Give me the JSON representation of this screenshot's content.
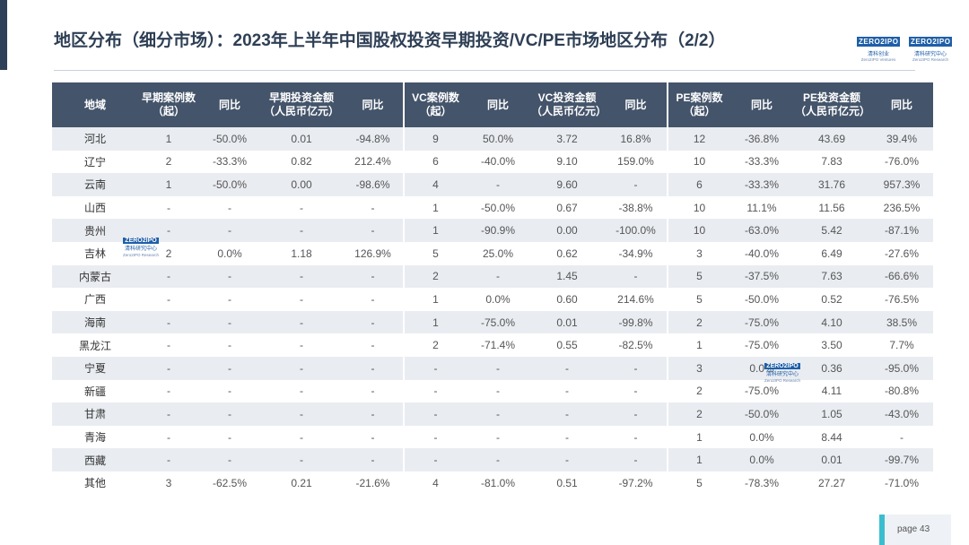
{
  "title": "地区分布（细分市场）：2023年上半年中国股权投资早期投资/VC/PE市场地区分布（2/2）",
  "logos": [
    {
      "word": "ZERO2IPO",
      "sub": "清科创业",
      "sub2": "Zero2IPO Ventures"
    },
    {
      "word": "ZERO2IPO",
      "sub": "清科研究中心",
      "sub2": "Zero2IPO Research"
    }
  ],
  "watermark": {
    "word": "ZERO2IPO",
    "sub": "清科研究中心",
    "sub2": "Zero2IPO Research"
  },
  "headers": [
    "地域",
    "早期案例数（起）",
    "同比",
    "早期投资金额（人民币亿元）",
    "同比",
    "VC案例数（起）",
    "同比",
    "VC投资金额（人民币亿元）",
    "同比",
    "PE案例数（起）",
    "同比",
    "PE投资金额（人民币亿元）",
    "同比"
  ],
  "rows": [
    [
      "河北",
      "1",
      "-50.0%",
      "0.01",
      "-94.8%",
      "9",
      "50.0%",
      "3.72",
      "16.8%",
      "12",
      "-36.8%",
      "43.69",
      "39.4%"
    ],
    [
      "辽宁",
      "2",
      "-33.3%",
      "0.82",
      "212.4%",
      "6",
      "-40.0%",
      "9.10",
      "159.0%",
      "10",
      "-33.3%",
      "7.83",
      "-76.0%"
    ],
    [
      "云南",
      "1",
      "-50.0%",
      "0.00",
      "-98.6%",
      "4",
      "-",
      "9.60",
      "-",
      "6",
      "-33.3%",
      "31.76",
      "957.3%"
    ],
    [
      "山西",
      "-",
      "-",
      "-",
      "-",
      "1",
      "-50.0%",
      "0.67",
      "-38.8%",
      "10",
      "11.1%",
      "11.56",
      "236.5%"
    ],
    [
      "贵州",
      "-",
      "-",
      "-",
      "-",
      "1",
      "-90.9%",
      "0.00",
      "-100.0%",
      "10",
      "-63.0%",
      "5.42",
      "-87.1%"
    ],
    [
      "吉林",
      "2",
      "0.0%",
      "1.18",
      "126.9%",
      "5",
      "25.0%",
      "0.62",
      "-34.9%",
      "3",
      "-40.0%",
      "6.49",
      "-27.6%"
    ],
    [
      "内蒙古",
      "-",
      "-",
      "-",
      "-",
      "2",
      "-",
      "1.45",
      "-",
      "5",
      "-37.5%",
      "7.63",
      "-66.6%"
    ],
    [
      "广西",
      "-",
      "-",
      "-",
      "-",
      "1",
      "0.0%",
      "0.60",
      "214.6%",
      "5",
      "-50.0%",
      "0.52",
      "-76.5%"
    ],
    [
      "海南",
      "-",
      "-",
      "-",
      "-",
      "1",
      "-75.0%",
      "0.01",
      "-99.8%",
      "2",
      "-75.0%",
      "4.10",
      "38.5%"
    ],
    [
      "黑龙江",
      "-",
      "-",
      "-",
      "-",
      "2",
      "-71.4%",
      "0.55",
      "-82.5%",
      "1",
      "-75.0%",
      "3.50",
      "7.7%"
    ],
    [
      "宁夏",
      "-",
      "-",
      "-",
      "-",
      "-",
      "-",
      "-",
      "-",
      "3",
      "0.0%",
      "0.36",
      "-95.0%"
    ],
    [
      "新疆",
      "-",
      "-",
      "-",
      "-",
      "-",
      "-",
      "-",
      "-",
      "2",
      "-75.0%",
      "4.11",
      "-80.8%"
    ],
    [
      "甘肃",
      "-",
      "-",
      "-",
      "-",
      "-",
      "-",
      "-",
      "-",
      "2",
      "-50.0%",
      "1.05",
      "-43.0%"
    ],
    [
      "青海",
      "-",
      "-",
      "-",
      "-",
      "-",
      "-",
      "-",
      "-",
      "1",
      "0.0%",
      "8.44",
      "-"
    ],
    [
      "西藏",
      "-",
      "-",
      "-",
      "-",
      "-",
      "-",
      "-",
      "-",
      "1",
      "0.0%",
      "0.01",
      "-99.7%"
    ],
    [
      "其他",
      "3",
      "-62.5%",
      "0.21",
      "-21.6%",
      "4",
      "-81.0%",
      "0.51",
      "-97.2%",
      "5",
      "-78.3%",
      "27.27",
      "-71.0%"
    ]
  ],
  "page_label": "page 43"
}
